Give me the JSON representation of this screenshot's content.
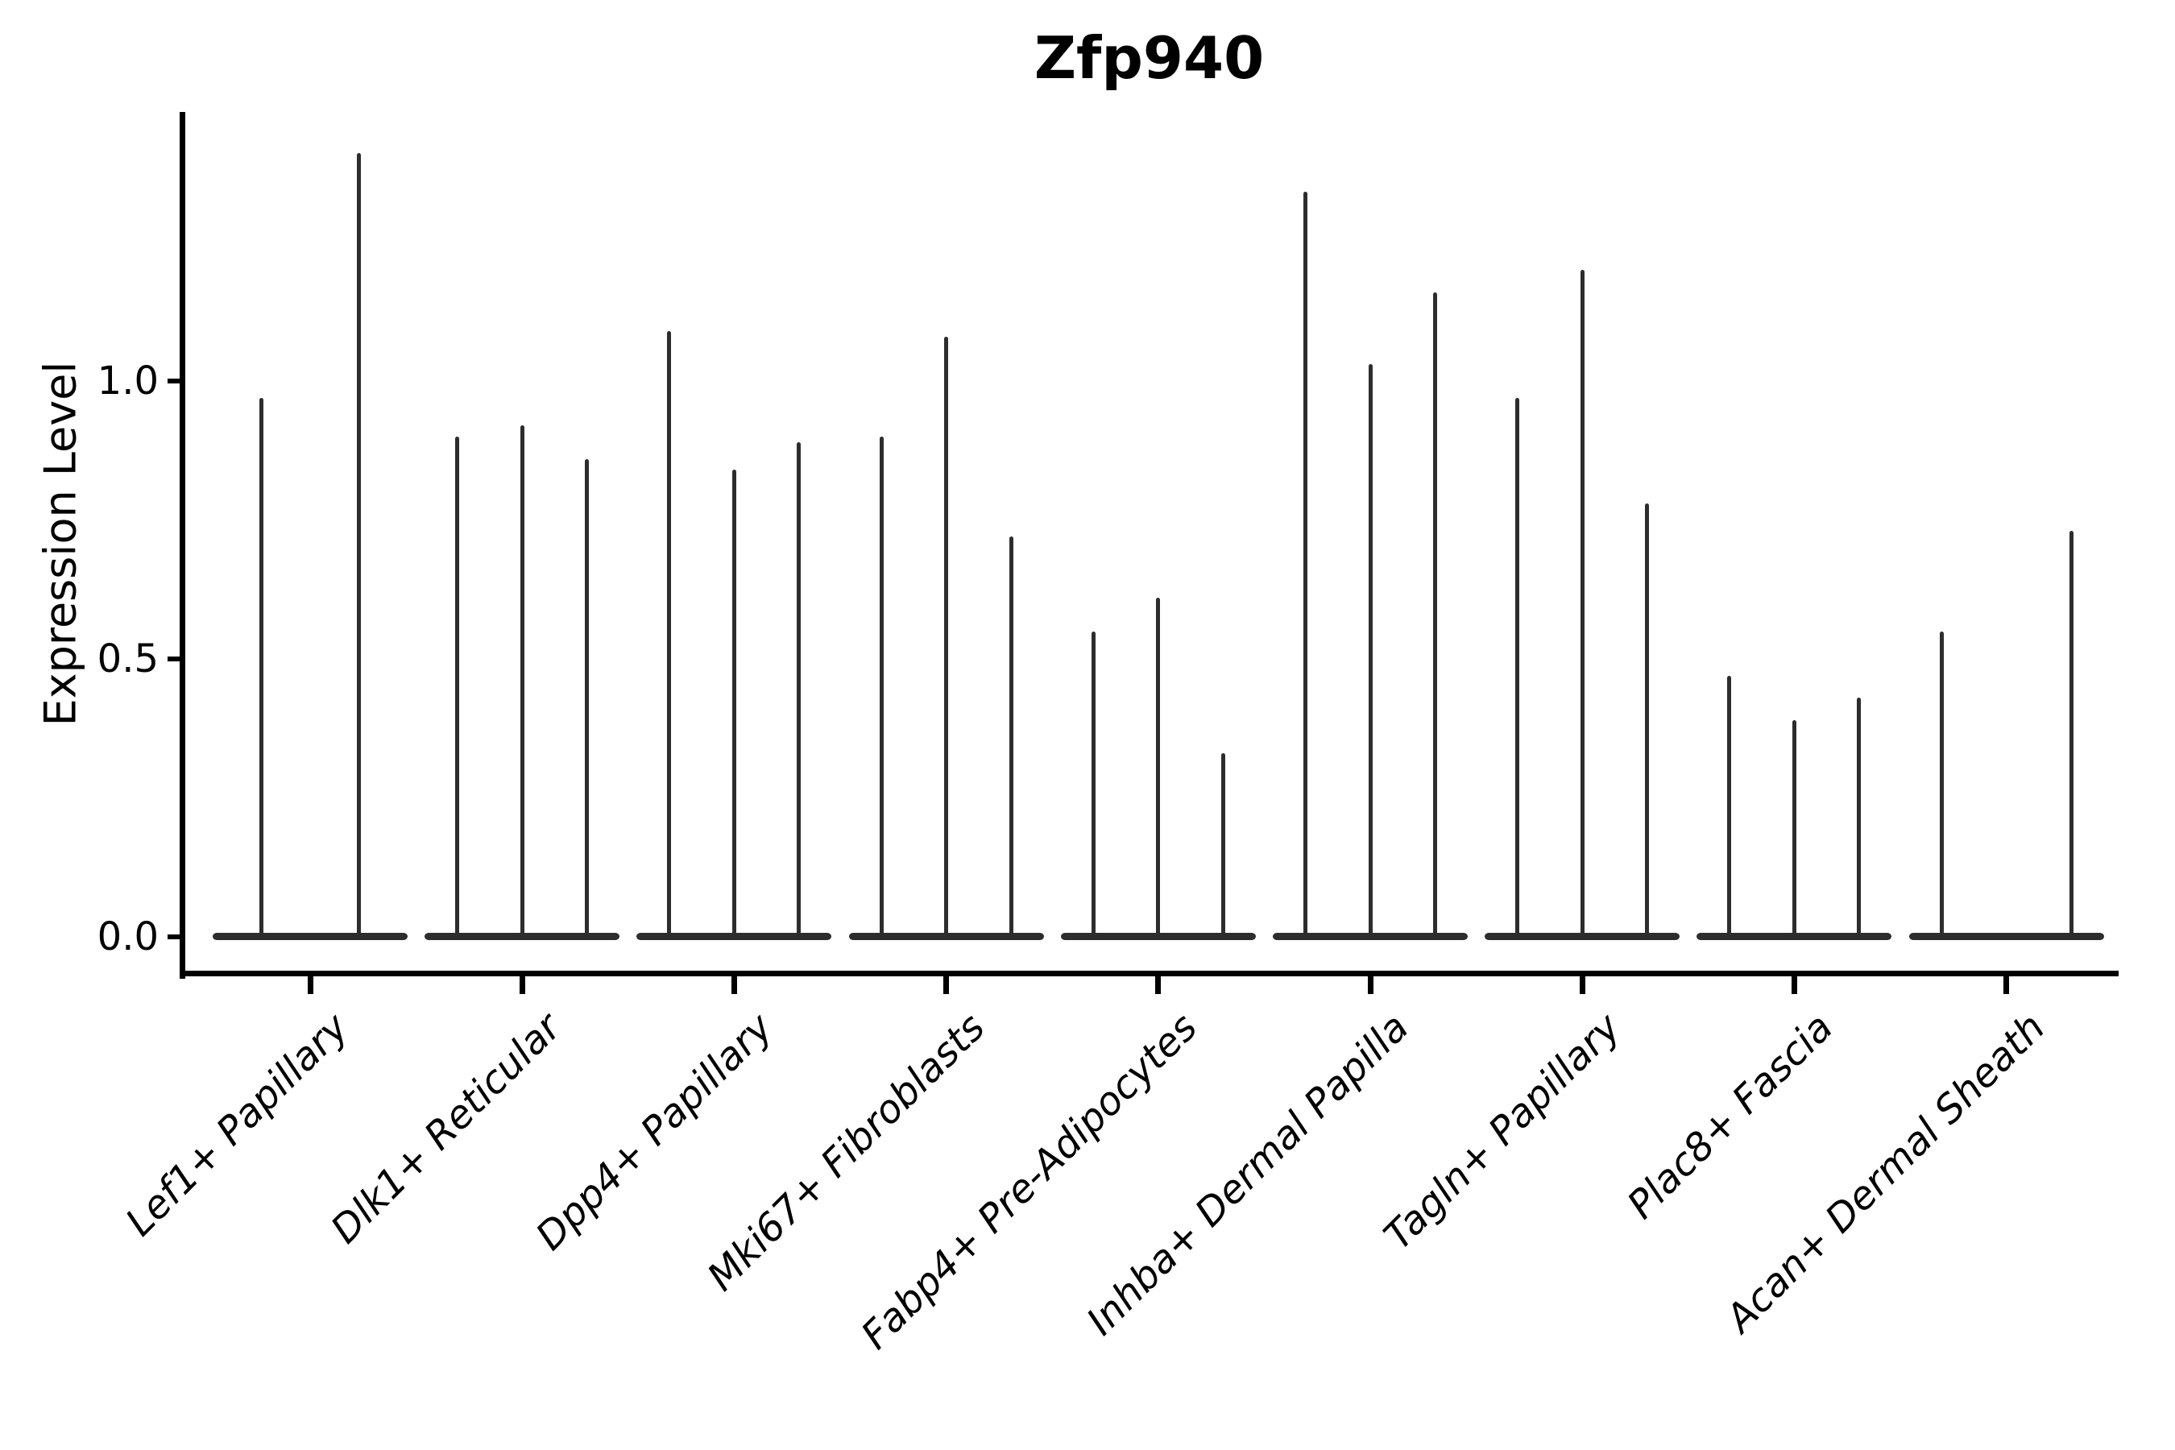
{
  "title": "Zfp940",
  "axes": {
    "ylabel": "Expression Level",
    "ytick_labels": [
      "0.0",
      "0.5",
      "1.0"
    ],
    "xtick_labels": [
      "Lef1+ Papillary",
      "Dlk1+ Reticular",
      "Dpp4+ Papillary",
      "Mki67+ Fibroblasts",
      "Fabp4+ Pre-Adipocytes",
      "Inhba+ Dermal Papilla",
      "Tagln+ Papillary",
      "Plac8+ Fascia",
      "Acan+ Dermal Sheath"
    ]
  },
  "colors": {
    "violin": "#2d2d2d",
    "axis": "#000000",
    "background": "#ffffff"
  },
  "chart_data": {
    "type": "violin",
    "title": "Zfp940",
    "xlabel": "",
    "ylabel": "Expression Level",
    "ylim": [
      -0.07,
      1.48
    ],
    "yticks": [
      0.0,
      0.5,
      1.0
    ],
    "grid": false,
    "legend": false,
    "description": "Violin plot of gene expression; each cell-type group shows narrow violins collapsed at 0 with thin spikes reaching the maximum expression value.",
    "categories": [
      "Lef1+ Papillary",
      "Dlk1+ Reticular",
      "Dpp4+ Papillary",
      "Mki67+ Fibroblasts",
      "Fabp4+ Pre-Adipocytes",
      "Inhba+ Dermal Papilla",
      "Tagln+ Papillary",
      "Plac8+ Fascia",
      "Acan+ Dermal Sheath"
    ],
    "series": [
      {
        "category": "Lef1+ Papillary",
        "violin_positions": [
          0.25,
          0.75
        ],
        "spike_values": [
          0.97,
          1.41
        ]
      },
      {
        "category": "Dlk1+ Reticular",
        "violin_positions": [
          0.167,
          0.5,
          0.833
        ],
        "spike_values": [
          0.9,
          0.92,
          0.86
        ]
      },
      {
        "category": "Dpp4+ Papillary",
        "violin_positions": [
          0.167,
          0.5,
          0.833
        ],
        "spike_values": [
          1.09,
          0.84,
          0.89
        ]
      },
      {
        "category": "Mki67+ Fibroblasts",
        "violin_positions": [
          0.167,
          0.5,
          0.833
        ],
        "spike_values": [
          0.9,
          1.08,
          0.72
        ]
      },
      {
        "category": "Fabp4+ Pre-Adipocytes",
        "violin_positions": [
          0.167,
          0.5,
          0.833
        ],
        "spike_values": [
          0.55,
          0.61,
          0.33
        ]
      },
      {
        "category": "Inhba+ Dermal Papilla",
        "violin_positions": [
          0.167,
          0.5,
          0.833
        ],
        "spike_values": [
          1.34,
          1.03,
          1.16
        ]
      },
      {
        "category": "Tagln+ Papillary",
        "violin_positions": [
          0.167,
          0.5,
          0.833
        ],
        "spike_values": [
          0.97,
          1.2,
          0.78
        ]
      },
      {
        "category": "Plac8+ Fascia",
        "violin_positions": [
          0.167,
          0.5,
          0.833
        ],
        "spike_values": [
          0.47,
          0.39,
          0.43
        ]
      },
      {
        "category": "Acan+ Dermal Sheath",
        "violin_positions": [
          0.167,
          0.833
        ],
        "spike_values": [
          0.55,
          0.73
        ]
      }
    ]
  }
}
